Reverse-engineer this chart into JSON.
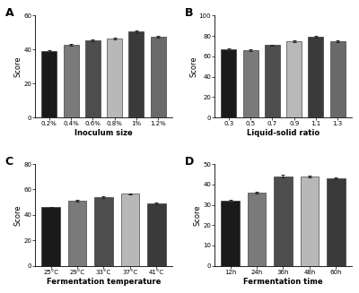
{
  "A": {
    "title": "A",
    "xlabel": "Inoculum size",
    "ylabel": "Score",
    "categories": [
      "0.2%",
      "0.4%",
      "0.6%",
      "0.8%",
      "1%",
      "1.2%"
    ],
    "values": [
      39,
      43,
      45.5,
      46.5,
      50.5,
      47.5
    ],
    "errors": [
      0.5,
      0.5,
      0.5,
      0.5,
      0.6,
      0.5
    ],
    "colors": [
      "#1a1a1a",
      "#7a7a7a",
      "#4d4d4d",
      "#b8b8b8",
      "#3a3a3a",
      "#6a6a6a"
    ],
    "ylim": [
      0,
      60
    ],
    "yticks": [
      0,
      20,
      40,
      60
    ]
  },
  "B": {
    "title": "B",
    "xlabel": "Liquid-solid ratio",
    "ylabel": "Score",
    "categories": [
      "0.3",
      "0.5",
      "0.7",
      "0.9",
      "1.1",
      "1.3"
    ],
    "values": [
      67,
      66,
      71,
      75,
      79,
      75
    ],
    "errors": [
      1.0,
      0.8,
      0.8,
      0.8,
      0.8,
      0.8
    ],
    "colors": [
      "#1a1a1a",
      "#7a7a7a",
      "#4d4d4d",
      "#b8b8b8",
      "#3a3a3a",
      "#6a6a6a"
    ],
    "ylim": [
      0,
      100
    ],
    "yticks": [
      0,
      20,
      40,
      60,
      80,
      100
    ]
  },
  "C": {
    "title": "C",
    "xlabel": "Fermentation temperature",
    "ylabel": "Score",
    "categories": [
      "25°C",
      "29°C",
      "33°C",
      "37°C",
      "41°C"
    ],
    "values": [
      46,
      51,
      54,
      56.5,
      49
    ],
    "errors": [
      0.6,
      0.8,
      0.7,
      0.6,
      0.5
    ],
    "colors": [
      "#1a1a1a",
      "#7a7a7a",
      "#4d4d4d",
      "#b8b8b8",
      "#3a3a3a"
    ],
    "ylim": [
      0,
      80
    ],
    "yticks": [
      0,
      20,
      40,
      60,
      80
    ]
  },
  "D": {
    "title": "D",
    "xlabel": "Fermentation time",
    "ylabel": "Score",
    "categories": [
      "12h",
      "24h",
      "36h",
      "48h",
      "60h"
    ],
    "values": [
      32,
      36,
      44,
      44,
      43
    ],
    "errors": [
      0.5,
      0.6,
      0.7,
      0.5,
      0.6
    ],
    "colors": [
      "#1a1a1a",
      "#7a7a7a",
      "#4d4d4d",
      "#b8b8b8",
      "#3a3a3a"
    ],
    "ylim": [
      0,
      50
    ],
    "yticks": [
      0,
      10,
      20,
      30,
      40,
      50
    ]
  },
  "fig_width": 4.0,
  "fig_height": 3.27,
  "dpi": 100
}
